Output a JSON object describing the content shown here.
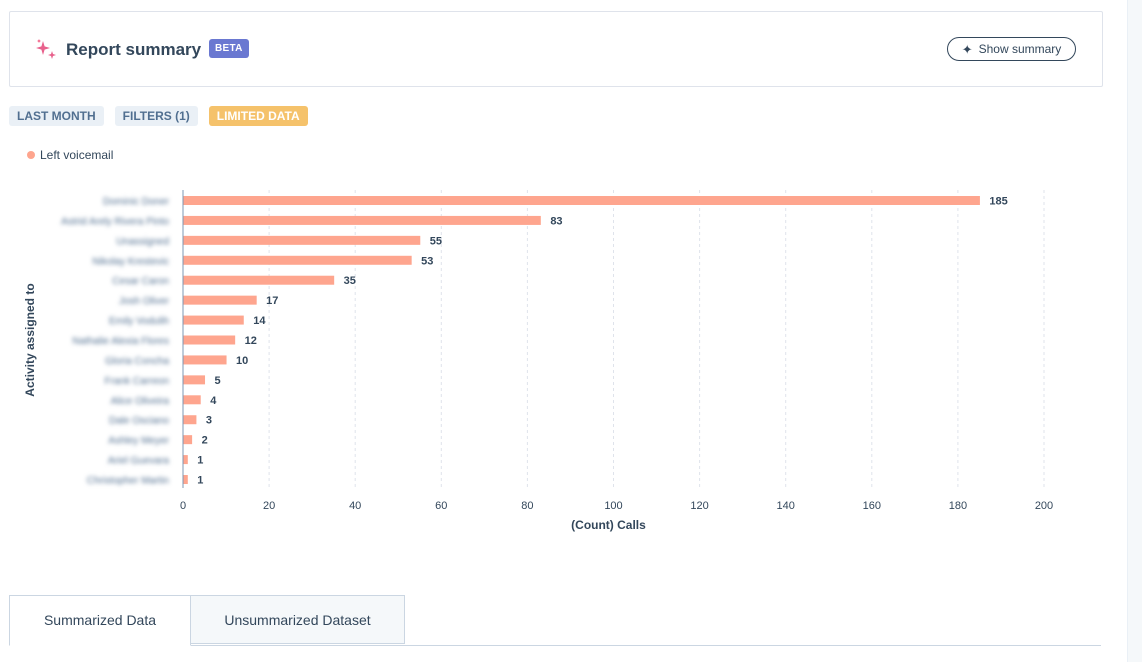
{
  "summary": {
    "title": "Report summary",
    "badge": "BETA",
    "show_summary_label": "Show summary",
    "icon": "sparkle-icon",
    "accent": "#e8618c"
  },
  "tags": [
    {
      "label": "LAST MONTH",
      "style": "neutral"
    },
    {
      "label": "FILTERS (1)",
      "style": "neutral"
    },
    {
      "label": "LIMITED DATA",
      "style": "warning"
    }
  ],
  "legend": {
    "label": "Left voicemail",
    "color": "#fea58e"
  },
  "chart_data": {
    "type": "bar",
    "orientation": "horizontal",
    "categories": [
      "Dominic Doner",
      "Astrid Arely Rivera Pinto",
      "Unassigned",
      "Nikolay Krestevic",
      "Cesar Caron",
      "Josh Oliver",
      "Emily Vodulih",
      "Nathalie Alexia Flores",
      "Gloria Concha",
      "Frank Carreon",
      "Alice Oliveira",
      "Dale Osciano",
      "Ashley Meyer",
      "Ariel Guevara",
      "Christopher Martin"
    ],
    "series": [
      {
        "name": "Left voicemail",
        "values": [
          185,
          83,
          55,
          53,
          35,
          17,
          14,
          12,
          10,
          5,
          4,
          3,
          2,
          1,
          1
        ]
      }
    ],
    "xlabel": "(Count) Calls",
    "ylabel": "Activity assigned to",
    "xlim": [
      0,
      200
    ],
    "xticks": [
      0,
      20,
      40,
      60,
      80,
      100,
      120,
      140,
      160,
      180,
      200
    ],
    "grid": "vertical-dashed",
    "bar_color": "#fea58e",
    "category_labels_blurred": true
  },
  "tabs": [
    {
      "label": "Summarized Data",
      "active": true
    },
    {
      "label": "Unsummarized Dataset",
      "active": false
    }
  ]
}
